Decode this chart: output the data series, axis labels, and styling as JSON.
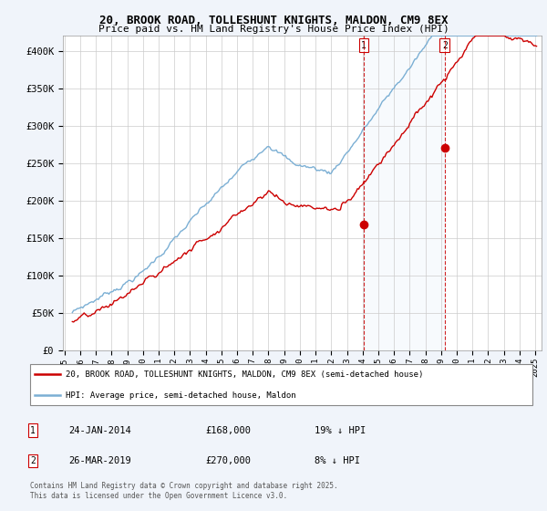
{
  "title_line1": "20, BROOK ROAD, TOLLESHUNT KNIGHTS, MALDON, CM9 8EX",
  "title_line2": "Price paid vs. HM Land Registry's House Price Index (HPI)",
  "ylim": [
    0,
    420000
  ],
  "yticks": [
    0,
    50000,
    100000,
    150000,
    200000,
    250000,
    300000,
    350000,
    400000
  ],
  "ytick_labels": [
    "£0",
    "£50K",
    "£100K",
    "£150K",
    "£200K",
    "£250K",
    "£300K",
    "£350K",
    "£400K"
  ],
  "hpi_color": "#7bafd4",
  "hpi_fill_color": "#d6e8f5",
  "price_color": "#cc0000",
  "vline_color": "#cc0000",
  "background_color": "#f0f4fa",
  "plot_bg_color": "#ffffff",
  "sale1_date": "24-JAN-2014",
  "sale1_price": 168000,
  "sale1_pct": "19%",
  "sale1_year": 2014.07,
  "sale2_date": "26-MAR-2019",
  "sale2_price": 270000,
  "sale2_pct": "8%",
  "sale2_year": 2019.23,
  "legend_label1": "20, BROOK ROAD, TOLLESHUNT KNIGHTS, MALDON, CM9 8EX (semi-detached house)",
  "legend_label2": "HPI: Average price, semi-detached house, Maldon",
  "footnote": "Contains HM Land Registry data © Crown copyright and database right 2025.\nThis data is licensed under the Open Government Licence v3.0.",
  "xstart": 1995.5,
  "xend": 2025.0
}
